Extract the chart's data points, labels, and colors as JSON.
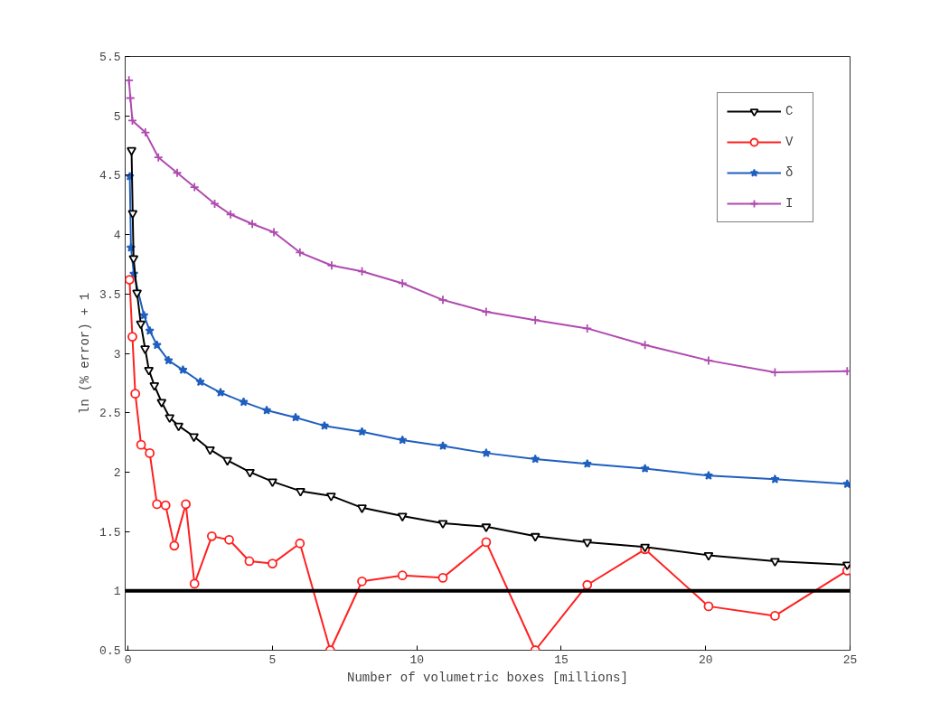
{
  "chart_data": {
    "type": "line",
    "xlabel": "Number of volumetric boxes [millions]",
    "ylabel": "ln (% error) + 1",
    "xlim": [
      -0.1,
      25
    ],
    "ylim": [
      0.5,
      5.5
    ],
    "xticks": [
      0,
      5,
      10,
      15,
      20,
      25
    ],
    "yticks": [
      0.5,
      1,
      1.5,
      2,
      2.5,
      3,
      3.5,
      4,
      4.5,
      5,
      5.5
    ],
    "grid": false,
    "legend": "top right",
    "line_style": "solid",
    "series": [
      {
        "name": "C",
        "color": "#000000",
        "marker": "triangle",
        "x": [
          0.12,
          0.16,
          0.19,
          0.31,
          0.44,
          0.59,
          0.72,
          0.91,
          1.16,
          1.44,
          1.75,
          2.28,
          2.84,
          3.44,
          4.22,
          5.0,
          5.97,
          7.03,
          8.1,
          9.5,
          10.9,
          12.4,
          14.1,
          15.9,
          17.9,
          20.1,
          22.4,
          24.9
        ],
        "values": [
          4.71,
          4.18,
          3.8,
          3.51,
          3.25,
          3.04,
          2.86,
          2.73,
          2.59,
          2.46,
          2.39,
          2.3,
          2.19,
          2.1,
          2.0,
          1.92,
          1.84,
          1.8,
          1.7,
          1.63,
          1.57,
          1.54,
          1.46,
          1.41,
          1.37,
          1.3,
          1.25,
          1.22
        ]
      },
      {
        "name": "V",
        "color": "#ff2020",
        "marker": "circle",
        "x": [
          0.05,
          0.15,
          0.25,
          0.45,
          0.75,
          1.0,
          1.3,
          1.6,
          2.0,
          2.3,
          2.9,
          3.5,
          4.2,
          5.0,
          5.95,
          7.0,
          8.1,
          9.5,
          10.9,
          12.4,
          14.1,
          15.9,
          17.9,
          20.1,
          22.4,
          24.9
        ],
        "values": [
          3.62,
          3.14,
          2.66,
          2.23,
          2.16,
          1.73,
          1.72,
          1.38,
          1.73,
          1.06,
          1.46,
          1.43,
          1.25,
          1.23,
          1.4,
          0.5,
          1.08,
          1.13,
          1.11,
          1.41,
          0.5,
          1.05,
          1.35,
          0.87,
          0.79,
          1.17
        ]
      },
      {
        "name": "δ",
        "color": "#1f5fbf",
        "marker": "star",
        "x": [
          0.06,
          0.1,
          0.2,
          0.55,
          0.75,
          1.0,
          1.4,
          1.9,
          2.5,
          3.2,
          4.0,
          4.8,
          5.8,
          6.8,
          8.1,
          9.5,
          10.9,
          12.4,
          14.1,
          15.9,
          17.9,
          20.1,
          22.4,
          24.9
        ],
        "values": [
          4.49,
          3.89,
          3.67,
          3.32,
          3.19,
          3.07,
          2.94,
          2.86,
          2.76,
          2.67,
          2.59,
          2.52,
          2.46,
          2.39,
          2.34,
          2.27,
          2.22,
          2.16,
          2.11,
          2.07,
          2.03,
          1.97,
          1.94,
          1.9
        ]
      },
      {
        "name": "I",
        "color": "#b04ab0",
        "marker": "cross",
        "x": [
          0.03,
          0.08,
          0.15,
          0.6,
          1.05,
          1.7,
          2.3,
          3.0,
          3.55,
          4.3,
          5.05,
          5.95,
          7.05,
          8.1,
          9.5,
          10.9,
          12.4,
          14.1,
          15.9,
          17.9,
          20.1,
          22.4,
          24.9
        ],
        "values": [
          5.3,
          5.15,
          4.96,
          4.86,
          4.65,
          4.52,
          4.4,
          4.26,
          4.17,
          4.09,
          4.02,
          3.85,
          3.74,
          3.69,
          3.59,
          3.45,
          3.35,
          3.28,
          3.21,
          3.07,
          2.94,
          2.84,
          2.85
        ]
      }
    ],
    "ref_lines": [
      {
        "axis": "y",
        "value": 1,
        "color": "#000000"
      }
    ]
  }
}
